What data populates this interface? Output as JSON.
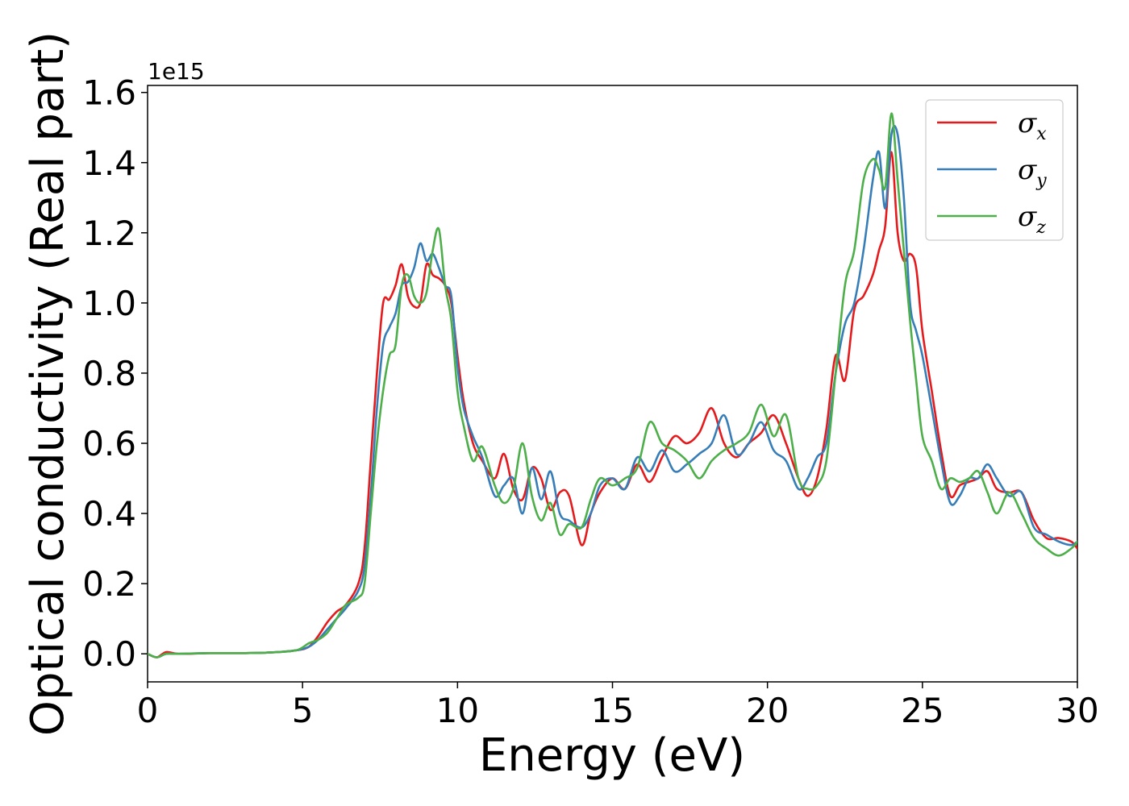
{
  "chart_data": {
    "type": "line",
    "xlabel": "Energy (eV)",
    "ylabel": "Optical conductivity (Real part)",
    "y_offset_label": "1e15",
    "xlim": [
      0,
      30
    ],
    "ylim": [
      -0.08,
      1.62
    ],
    "x_ticks": [
      0,
      5,
      10,
      15,
      20,
      25,
      30
    ],
    "x_tick_labels": [
      "0",
      "5",
      "10",
      "15",
      "20",
      "25",
      "30"
    ],
    "y_ticks": [
      0.0,
      0.2,
      0.4,
      0.6,
      0.8,
      1.0,
      1.2,
      1.4,
      1.6
    ],
    "y_tick_labels": [
      "0.0",
      "0.2",
      "0.4",
      "0.6",
      "0.8",
      "1.0",
      "1.2",
      "1.4",
      "1.6"
    ],
    "grid": false,
    "legend_position": "top-right",
    "series": [
      {
        "name": "σ",
        "subscript": "x",
        "color": "#e41a1c",
        "x": [
          0,
          0.3,
          0.6,
          1,
          2,
          3,
          4,
          4.8,
          5.2,
          5.5,
          5.8,
          6.1,
          6.4,
          6.8,
          7.0,
          7.2,
          7.4,
          7.6,
          7.8,
          8.0,
          8.2,
          8.4,
          8.6,
          8.8,
          9.0,
          9.2,
          9.4,
          9.6,
          9.8,
          10.0,
          10.2,
          10.5,
          10.8,
          11.2,
          11.5,
          11.8,
          12.1,
          12.4,
          12.7,
          13.0,
          13.3,
          13.6,
          14.0,
          14.3,
          14.6,
          15.0,
          15.4,
          15.8,
          16.2,
          16.6,
          17.0,
          17.4,
          17.8,
          18.2,
          18.6,
          19.0,
          19.4,
          19.8,
          20.2,
          20.6,
          21.0,
          21.3,
          21.6,
          21.9,
          22.2,
          22.5,
          22.8,
          23.1,
          23.4,
          23.6,
          23.8,
          24.0,
          24.2,
          24.4,
          24.6,
          24.8,
          25.0,
          25.3,
          25.6,
          25.9,
          26.2,
          26.5,
          26.8,
          27.1,
          27.4,
          27.8,
          28.2,
          28.6,
          29.0,
          29.4,
          29.8,
          30.0
        ],
        "values": [
          0.0,
          -0.01,
          0.005,
          0.0,
          0.002,
          0.002,
          0.004,
          0.01,
          0.02,
          0.05,
          0.09,
          0.12,
          0.14,
          0.2,
          0.3,
          0.55,
          0.8,
          1.0,
          1.01,
          1.05,
          1.11,
          1.02,
          0.99,
          1.0,
          1.11,
          1.08,
          1.07,
          1.05,
          1.0,
          0.85,
          0.72,
          0.6,
          0.55,
          0.5,
          0.57,
          0.47,
          0.44,
          0.53,
          0.5,
          0.41,
          0.46,
          0.45,
          0.31,
          0.4,
          0.46,
          0.5,
          0.47,
          0.54,
          0.49,
          0.56,
          0.62,
          0.6,
          0.63,
          0.7,
          0.6,
          0.56,
          0.6,
          0.63,
          0.68,
          0.6,
          0.5,
          0.45,
          0.5,
          0.64,
          0.85,
          0.78,
          0.98,
          1.02,
          1.08,
          1.15,
          1.22,
          1.43,
          1.2,
          1.12,
          1.14,
          1.1,
          0.92,
          0.75,
          0.58,
          0.45,
          0.48,
          0.49,
          0.5,
          0.52,
          0.47,
          0.46,
          0.46,
          0.38,
          0.33,
          0.33,
          0.32,
          0.3
        ]
      },
      {
        "name": "σ",
        "subscript": "y",
        "color": "#377eb8",
        "x": [
          0,
          0.3,
          0.6,
          1,
          2,
          3,
          4,
          4.8,
          5.2,
          5.5,
          5.8,
          6.1,
          6.4,
          6.8,
          7.0,
          7.2,
          7.4,
          7.6,
          7.8,
          8.0,
          8.2,
          8.4,
          8.6,
          8.8,
          9.0,
          9.2,
          9.4,
          9.6,
          9.8,
          10.0,
          10.2,
          10.5,
          10.8,
          11.2,
          11.5,
          11.8,
          12.1,
          12.4,
          12.7,
          13.0,
          13.3,
          13.6,
          14.0,
          14.3,
          14.6,
          15.0,
          15.4,
          15.8,
          16.2,
          16.6,
          17.0,
          17.4,
          17.8,
          18.2,
          18.6,
          19.0,
          19.4,
          19.8,
          20.2,
          20.6,
          21.0,
          21.3,
          21.6,
          21.9,
          22.2,
          22.5,
          22.8,
          23.1,
          23.4,
          23.6,
          23.8,
          24.0,
          24.2,
          24.4,
          24.6,
          24.8,
          25.0,
          25.3,
          25.6,
          25.9,
          26.2,
          26.5,
          26.8,
          27.1,
          27.4,
          27.8,
          28.2,
          28.6,
          29.0,
          29.4,
          29.8,
          30.0
        ],
        "values": [
          0.0,
          -0.01,
          0.0,
          0.0,
          0.002,
          0.002,
          0.004,
          0.01,
          0.02,
          0.04,
          0.07,
          0.1,
          0.13,
          0.18,
          0.25,
          0.45,
          0.7,
          0.88,
          0.93,
          0.97,
          1.05,
          1.06,
          1.1,
          1.17,
          1.12,
          1.14,
          1.1,
          1.05,
          1.02,
          0.82,
          0.7,
          0.62,
          0.56,
          0.45,
          0.48,
          0.5,
          0.4,
          0.53,
          0.44,
          0.52,
          0.4,
          0.38,
          0.36,
          0.4,
          0.48,
          0.5,
          0.47,
          0.56,
          0.52,
          0.58,
          0.52,
          0.54,
          0.57,
          0.6,
          0.68,
          0.57,
          0.6,
          0.66,
          0.58,
          0.55,
          0.47,
          0.5,
          0.56,
          0.6,
          0.8,
          0.94,
          1.0,
          1.15,
          1.35,
          1.43,
          1.27,
          1.48,
          1.48,
          1.3,
          1.0,
          0.92,
          0.85,
          0.7,
          0.55,
          0.43,
          0.45,
          0.5,
          0.5,
          0.54,
          0.5,
          0.45,
          0.46,
          0.36,
          0.34,
          0.32,
          0.31,
          0.32
        ]
      },
      {
        "name": "σ",
        "subscript": "z",
        "color": "#4daf4a",
        "x": [
          0,
          0.3,
          0.6,
          1,
          2,
          3,
          4,
          4.8,
          5.2,
          5.5,
          5.8,
          6.1,
          6.4,
          6.8,
          7.0,
          7.2,
          7.4,
          7.6,
          7.8,
          8.0,
          8.2,
          8.4,
          8.6,
          8.8,
          9.0,
          9.2,
          9.4,
          9.6,
          9.8,
          10.0,
          10.2,
          10.5,
          10.8,
          11.2,
          11.5,
          11.8,
          12.1,
          12.4,
          12.7,
          13.0,
          13.3,
          13.6,
          14.0,
          14.3,
          14.6,
          15.0,
          15.4,
          15.8,
          16.2,
          16.6,
          17.0,
          17.4,
          17.8,
          18.2,
          18.6,
          19.0,
          19.4,
          19.8,
          20.2,
          20.6,
          21.0,
          21.3,
          21.6,
          21.9,
          22.2,
          22.5,
          22.8,
          23.1,
          23.4,
          23.6,
          23.8,
          24.0,
          24.2,
          24.4,
          24.6,
          24.8,
          25.0,
          25.3,
          25.6,
          25.9,
          26.2,
          26.5,
          26.8,
          27.1,
          27.4,
          27.8,
          28.2,
          28.6,
          29.0,
          29.4,
          29.8,
          30.0
        ],
        "values": [
          0.0,
          -0.01,
          0.0,
          0.0,
          0.002,
          0.002,
          0.004,
          0.01,
          0.03,
          0.04,
          0.06,
          0.1,
          0.14,
          0.16,
          0.2,
          0.4,
          0.6,
          0.75,
          0.85,
          0.88,
          1.05,
          1.08,
          1.02,
          1.0,
          1.03,
          1.15,
          1.21,
          1.05,
          0.95,
          0.75,
          0.65,
          0.55,
          0.59,
          0.48,
          0.43,
          0.47,
          0.6,
          0.45,
          0.38,
          0.43,
          0.34,
          0.37,
          0.36,
          0.44,
          0.5,
          0.48,
          0.5,
          0.53,
          0.66,
          0.6,
          0.58,
          0.55,
          0.5,
          0.55,
          0.58,
          0.6,
          0.63,
          0.71,
          0.62,
          0.68,
          0.5,
          0.47,
          0.48,
          0.55,
          0.8,
          1.05,
          1.15,
          1.35,
          1.41,
          1.38,
          1.33,
          1.54,
          1.35,
          1.15,
          0.95,
          0.78,
          0.62,
          0.55,
          0.47,
          0.5,
          0.49,
          0.5,
          0.52,
          0.46,
          0.4,
          0.46,
          0.4,
          0.33,
          0.3,
          0.28,
          0.3,
          0.32
        ]
      }
    ]
  }
}
